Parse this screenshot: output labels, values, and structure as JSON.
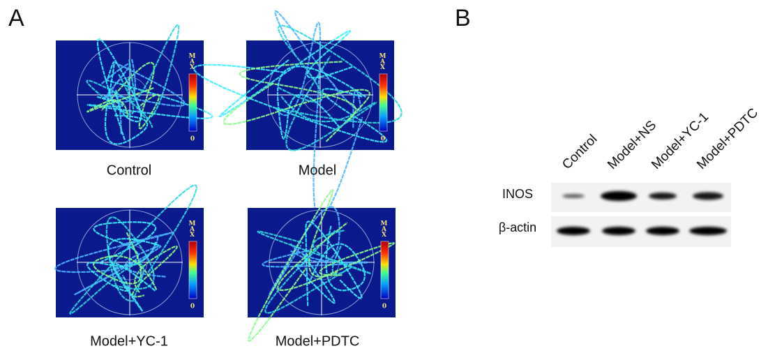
{
  "panel_a": {
    "label": "A",
    "colorbar": {
      "max": "MAX",
      "min": "0"
    },
    "groups": [
      "Control",
      "Model",
      "Model+YC-1",
      "Model+PDTC"
    ]
  },
  "panel_b": {
    "label": "B",
    "lanes": [
      "Control",
      "Model+NS",
      "Model+YC-1",
      "Model+PDTC"
    ],
    "rows": [
      "INOS",
      "β-actin"
    ]
  }
}
